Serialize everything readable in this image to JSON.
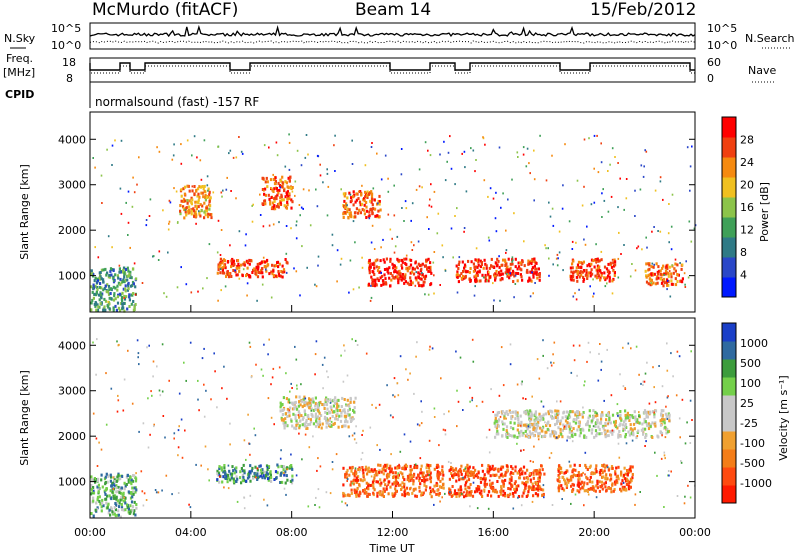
{
  "header": {
    "station": "McMurdo (fitACF)",
    "beam": "Beam 14",
    "date": "15/Feb/2012"
  },
  "noise_panel": {
    "left_label": "N.Sky",
    "right_label": "N.Search",
    "left_ticks": [
      "10^5",
      "10^0"
    ],
    "right_ticks": [
      "10^5",
      "10^0"
    ],
    "right_legend_style": "dotted"
  },
  "freq_panel": {
    "left_label_1": "Freq.",
    "left_label_2": "[MHz]",
    "right_label": "Nave",
    "left_ticks": [
      "18",
      "8"
    ],
    "right_ticks": [
      "60",
      "0"
    ],
    "right_legend_style": "dotted"
  },
  "cpid_panel": {
    "label": "CPID",
    "text": "normalsound (fast) -157 RF"
  },
  "colors": {
    "power_scale": [
      "#0019ff",
      "#2a47c8",
      "#2f7a86",
      "#3fa058",
      "#8cc44a",
      "#f0c020",
      "#f58a10",
      "#f04010",
      "#ff0000"
    ],
    "velocity_scale": [
      "#ff1a00",
      "#ff4a10",
      "#f47d18",
      "#f0a030",
      "#c8c8c8",
      "#c8c8c8",
      "#74d04a",
      "#3c9c3c",
      "#2f6aa0",
      "#1a3fc8"
    ]
  },
  "chart_data": [
    {
      "type": "heatmap",
      "name": "power",
      "ylabel": "Slant Range [km]",
      "yticks": [
        "1000",
        "2000",
        "3000",
        "4000"
      ],
      "ylim": [
        200,
        4600
      ],
      "xlim": [
        0,
        24
      ],
      "colorbar": {
        "label": "Power [dB]",
        "ticks": [
          "4",
          "8",
          "12",
          "16",
          "20",
          "24",
          "28"
        ],
        "range": [
          0,
          32
        ]
      },
      "echo_bands_hours_km": [
        {
          "x": [
            0.0,
            1.8
          ],
          "y": [
            250,
            1200
          ],
          "level": 0.35
        },
        {
          "x": [
            3.5,
            4.8
          ],
          "y": [
            2300,
            3000
          ],
          "level": 0.7
        },
        {
          "x": [
            5.0,
            7.8
          ],
          "y": [
            1000,
            1400
          ],
          "level": 0.85
        },
        {
          "x": [
            6.8,
            8.0
          ],
          "y": [
            2500,
            3200
          ],
          "level": 0.8
        },
        {
          "x": [
            10.0,
            11.5
          ],
          "y": [
            2300,
            2900
          ],
          "level": 0.8
        },
        {
          "x": [
            11.0,
            13.5
          ],
          "y": [
            800,
            1400
          ],
          "level": 0.9
        },
        {
          "x": [
            14.5,
            17.8
          ],
          "y": [
            900,
            1400
          ],
          "level": 0.9
        },
        {
          "x": [
            19.0,
            20.8
          ],
          "y": [
            900,
            1400
          ],
          "level": 0.85
        },
        {
          "x": [
            22.0,
            23.5
          ],
          "y": [
            800,
            1300
          ],
          "level": 0.8
        }
      ]
    },
    {
      "type": "heatmap",
      "name": "velocity",
      "ylabel": "Slant Range [km]",
      "xlabel": "Time UT",
      "yticks": [
        "1000",
        "2000",
        "3000",
        "4000"
      ],
      "ylim": [
        200,
        4600
      ],
      "xlim": [
        0,
        24
      ],
      "xticks": [
        "00:00",
        "04:00",
        "08:00",
        "12:00",
        "16:00",
        "20:00",
        "00:00"
      ],
      "colorbar": {
        "label": "Velocity [m s⁻¹]",
        "ticks": [
          "1000",
          "500",
          "100",
          "25",
          "-25",
          "-100",
          "-500",
          "-1000"
        ]
      },
      "echo_bands_hours_km": [
        {
          "x": [
            0.0,
            1.8
          ],
          "y": [
            250,
            1200
          ],
          "level": 0.7
        },
        {
          "x": [
            5.0,
            8.0
          ],
          "y": [
            1000,
            1400
          ],
          "level": 0.75
        },
        {
          "x": [
            10.0,
            14.0
          ],
          "y": [
            700,
            1400
          ],
          "level": 0.2
        },
        {
          "x": [
            14.2,
            18.0
          ],
          "y": [
            700,
            1400
          ],
          "level": 0.15
        },
        {
          "x": [
            18.5,
            21.5
          ],
          "y": [
            800,
            1400
          ],
          "level": 0.2
        },
        {
          "x": [
            7.5,
            10.5
          ],
          "y": [
            2200,
            2900
          ],
          "level": 0.5
        },
        {
          "x": [
            16.0,
            23.0
          ],
          "y": [
            2000,
            2600
          ],
          "level": 0.5
        }
      ]
    }
  ]
}
